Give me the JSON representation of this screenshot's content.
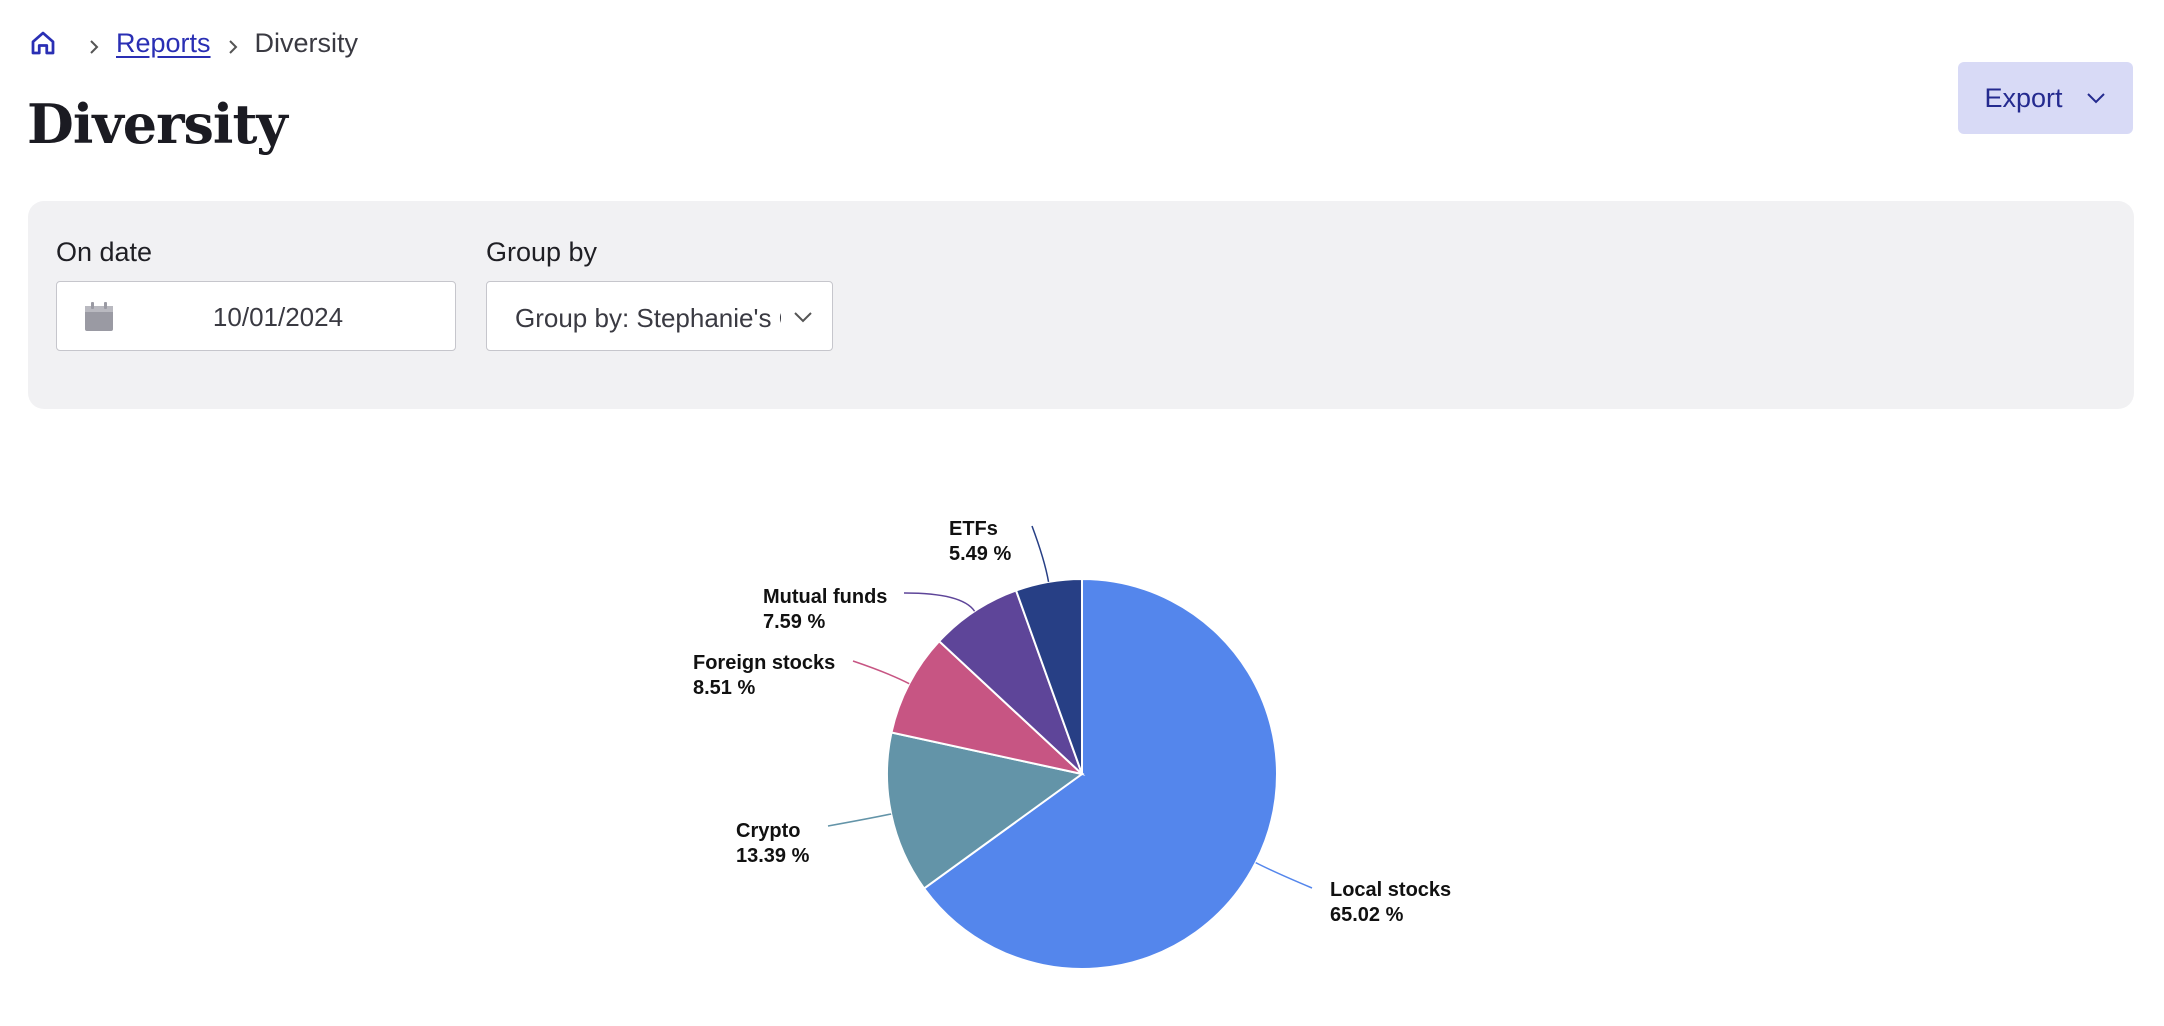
{
  "breadcrumb": {
    "link": "Reports",
    "current": "Diversity"
  },
  "page": {
    "title": "Diversity"
  },
  "toolbar": {
    "export_label": "Export"
  },
  "filters": {
    "date_label": "On date",
    "date_value": "10/01/2024",
    "group_label": "Group by",
    "group_value": "Group by: Stephanie's C"
  },
  "chart_data": {
    "type": "pie",
    "slices": [
      {
        "label": "Local stocks",
        "value": 65.02,
        "value_text": "65.02 %",
        "color": "#5486ec"
      },
      {
        "label": "Crypto",
        "value": 13.39,
        "value_text": "13.39 %",
        "color": "#6394a8"
      },
      {
        "label": "Foreign stocks",
        "value": 8.51,
        "value_text": "8.51 %",
        "color": "#c75583"
      },
      {
        "label": "Mutual funds",
        "value": 7.59,
        "value_text": "7.59 %",
        "color": "#5e4599"
      },
      {
        "label": "ETFs",
        "value": 5.49,
        "value_text": "5.49 %",
        "color": "#273f85"
      }
    ]
  }
}
